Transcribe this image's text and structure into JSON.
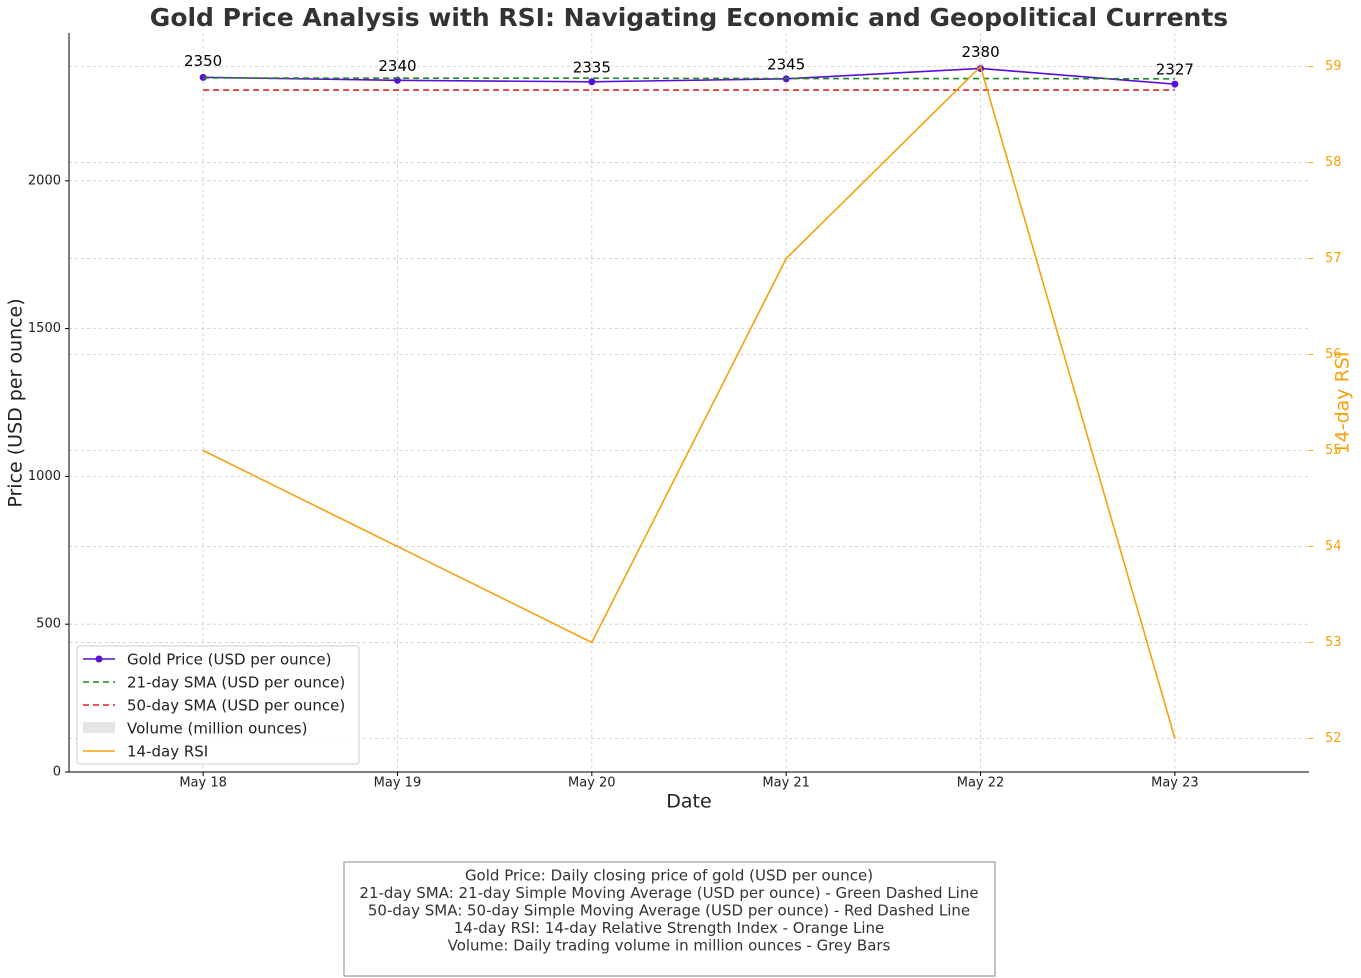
{
  "chart_data": {
    "type": "line",
    "title": "Gold Price Analysis with RSI: Navigating Economic and Geopolitical Currents",
    "x_label": "Date",
    "y_label": "Price (USD per ounce)",
    "y2_label": "14-day RSI",
    "categories": [
      "May 18",
      "May 19",
      "May 20",
      "May 21",
      "May 22",
      "May 23"
    ],
    "series": [
      {
        "name": "Gold Price (USD per ounce)",
        "color": "#5b0fd6",
        "values": [
          2350,
          2340,
          2335,
          2345,
          2380,
          2327
        ],
        "markers": true,
        "data_labels": true
      },
      {
        "name": "21-day SMA (USD per ounce)",
        "color": "#1a8a1a",
        "values": [
          2348,
          2347,
          2347,
          2346,
          2346,
          2345
        ],
        "dashed": true
      },
      {
        "name": "50-day SMA (USD per ounce)",
        "color": "#e02020",
        "values": [
          2307,
          2307,
          2307,
          2307,
          2307,
          2307
        ],
        "dashed": true
      },
      {
        "name": "Volume (million ounces)",
        "color": "#e5e5e5",
        "values": [
          null,
          null,
          null,
          null,
          null,
          null
        ],
        "kind": "bar"
      },
      {
        "name": "14-day RSI",
        "color": "#f5a20a",
        "values": [
          55,
          54,
          53,
          57,
          59,
          52
        ],
        "axis": "y2"
      }
    ],
    "ylim": [
      0,
      2500
    ],
    "yticks": [
      0,
      500,
      1000,
      1500,
      2000
    ],
    "y2lim": [
      51.65,
      59.35
    ],
    "y2ticks": [
      52,
      53,
      54,
      55,
      56,
      57,
      58,
      59
    ],
    "grid": true,
    "legend": "lower left",
    "annotation": [
      "Gold Price: Daily closing price of gold (USD per ounce)",
      "21-day SMA: 21-day Simple Moving Average (USD per ounce) - Green Dashed Line",
      "50-day SMA: 50-day Simple Moving Average (USD per ounce) - Red Dashed Line",
      "14-day RSI: 14-day Relative Strength Index - Orange Line",
      "Volume: Daily trading volume in million ounces - Grey Bars"
    ]
  }
}
